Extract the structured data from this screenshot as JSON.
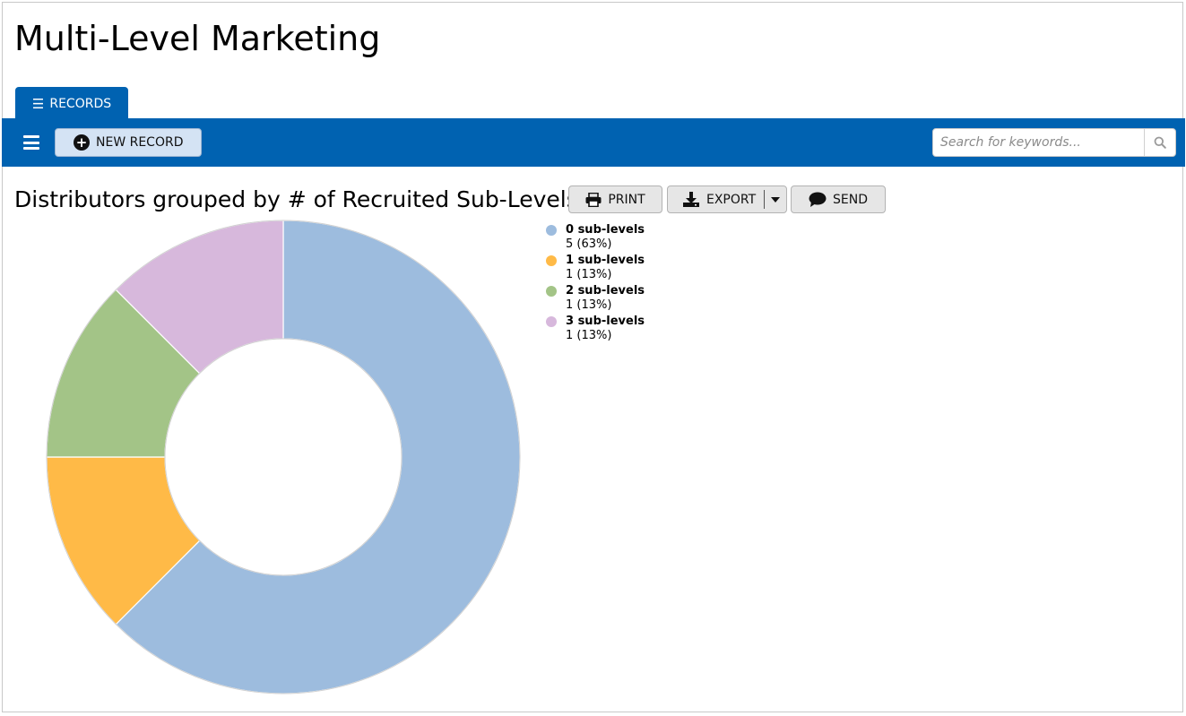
{
  "app": {
    "title": "Multi-Level Marketing"
  },
  "tabs": [
    {
      "label": "RECORDS",
      "icon": "list-icon",
      "active": true
    }
  ],
  "toolbar": {
    "menu_icon": "hamburger-icon",
    "new_record_label": "NEW RECORD",
    "search": {
      "placeholder": "Search for keywords...",
      "value": ""
    }
  },
  "report": {
    "title": "Distributors grouped by # of Recruited Sub-Levels",
    "actions": {
      "print_label": "PRINT",
      "export_label": "EXPORT",
      "send_label": "SEND"
    }
  },
  "chart_data": {
    "type": "pie",
    "donut": true,
    "categories": [
      "0 sub-levels",
      "1 sub-levels",
      "2 sub-levels",
      "3 sub-levels"
    ],
    "values": [
      5,
      1,
      1,
      1
    ],
    "value_labels": [
      "5 (63%)",
      "1 (13%)",
      "1 (13%)",
      "1 (13%)"
    ],
    "colors": [
      "#9dbcde",
      "#ffba47",
      "#a3c487",
      "#d7b8dc"
    ],
    "legend": "right"
  }
}
